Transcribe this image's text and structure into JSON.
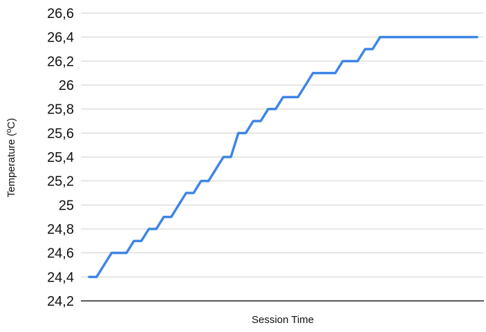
{
  "chart_data": {
    "type": "line",
    "title": "",
    "xlabel": "Session Time",
    "ylabel": "Temperature (ºC)",
    "ylim": [
      24.2,
      26.6
    ],
    "yticks": [
      "24,2",
      "24,4",
      "24,6",
      "24,8",
      "25",
      "25,2",
      "25,4",
      "25,6",
      "25,8",
      "26",
      "26,2",
      "26,4",
      "26,6"
    ],
    "ytick_values": [
      24.2,
      24.4,
      24.6,
      24.8,
      25.0,
      25.2,
      25.4,
      25.6,
      25.8,
      26.0,
      26.2,
      26.4,
      26.6
    ],
    "grid": true,
    "legend": "none",
    "x": [
      1,
      2,
      3,
      4,
      5,
      6,
      7,
      8,
      9,
      10,
      11,
      12,
      13,
      14,
      15,
      16,
      17,
      18,
      19,
      20,
      21,
      22,
      23,
      24,
      25,
      26,
      27,
      28,
      29,
      30,
      31,
      32,
      33,
      34,
      35,
      36,
      37,
      38,
      39,
      40,
      41,
      42,
      43,
      44,
      45,
      46,
      47,
      48,
      49,
      50,
      51,
      52,
      53
    ],
    "series": [
      {
        "color": "#3d85e6",
        "values": [
          24.4,
          24.4,
          24.5,
          24.6,
          24.6,
          24.6,
          24.7,
          24.7,
          24.8,
          24.8,
          24.9,
          24.9,
          25.0,
          25.1,
          25.1,
          25.2,
          25.2,
          25.3,
          25.4,
          25.4,
          25.6,
          25.6,
          25.7,
          25.7,
          25.8,
          25.8,
          25.9,
          25.9,
          25.9,
          26.0,
          26.1,
          26.1,
          26.1,
          26.1,
          26.2,
          26.2,
          26.2,
          26.3,
          26.3,
          26.4,
          26.4,
          26.4,
          26.4,
          26.4,
          26.4,
          26.4,
          26.4,
          26.4,
          26.4,
          26.4,
          26.4,
          26.4,
          26.4
        ]
      }
    ]
  }
}
